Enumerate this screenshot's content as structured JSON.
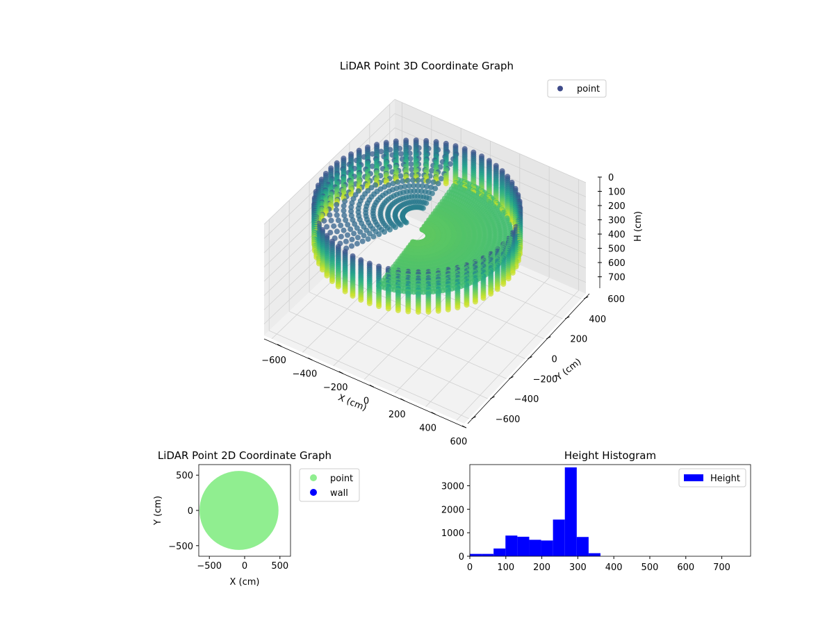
{
  "chart_data": [
    {
      "type": "scatter3d",
      "title": "LiDAR Point 3D Coordinate Graph",
      "xlabel": "X (cm)",
      "ylabel": "Y (cm)",
      "zlabel": "H (cm)",
      "xlim": [
        -650,
        650
      ],
      "ylim": [
        -650,
        650
      ],
      "zlim": [
        0,
        780
      ],
      "z_inverted": true,
      "xticks": [
        -600,
        -400,
        -200,
        0,
        200,
        400,
        600
      ],
      "yticks": [
        -600,
        -400,
        -200,
        0,
        200,
        400,
        600
      ],
      "zticks": [
        0,
        100,
        200,
        300,
        400,
        500,
        600,
        700
      ],
      "legend": [
        {
          "label": "point",
          "color": "#3e4a89"
        }
      ],
      "legend_position": "top-right",
      "colormap": "viridis",
      "series": [
        {
          "name": "point",
          "description_geometry": "ring of vertical wall scans at radius ~560 cm, heights 40-330 cm, plus ceiling/floor scan lines",
          "ring_radius": 560,
          "height_range": [
            40,
            330
          ]
        }
      ],
      "grid": true
    },
    {
      "type": "scatter",
      "title": "LiDAR Point 2D Coordinate Graph",
      "xlabel": "X (cm)",
      "ylabel": "Y (cm)",
      "xlim": [
        -650,
        650
      ],
      "ylim": [
        -650,
        650
      ],
      "xticks": [
        -500,
        0,
        500
      ],
      "yticks": [
        -500,
        0,
        500
      ],
      "legend": [
        {
          "label": "point",
          "color": "#90ee90"
        },
        {
          "label": "wall",
          "color": "#0000ff"
        }
      ],
      "legend_position": "outside-right",
      "series": [
        {
          "name": "point",
          "shape": "disc",
          "center": [
            -80,
            0
          ],
          "radius": 560
        }
      ],
      "grid": false
    },
    {
      "type": "bar",
      "title": "Height Histogram",
      "xlabel": "",
      "ylabel": "",
      "xlim": [
        0,
        780
      ],
      "ylim": [
        0,
        3900
      ],
      "xticks": [
        0,
        100,
        200,
        300,
        400,
        500,
        600,
        700
      ],
      "yticks": [
        0,
        1000,
        2000,
        3000
      ],
      "bin_width": 33,
      "bin_edges_start": 0,
      "values": [
        100,
        100,
        330,
        880,
        830,
        700,
        670,
        1560,
        3780,
        820,
        130,
        0,
        0,
        0,
        0,
        0,
        0,
        0,
        0,
        0,
        0,
        0,
        0,
        0
      ],
      "legend": [
        {
          "label": "Height",
          "color": "#0000ff"
        }
      ],
      "legend_position": "top-right",
      "grid": false
    }
  ]
}
